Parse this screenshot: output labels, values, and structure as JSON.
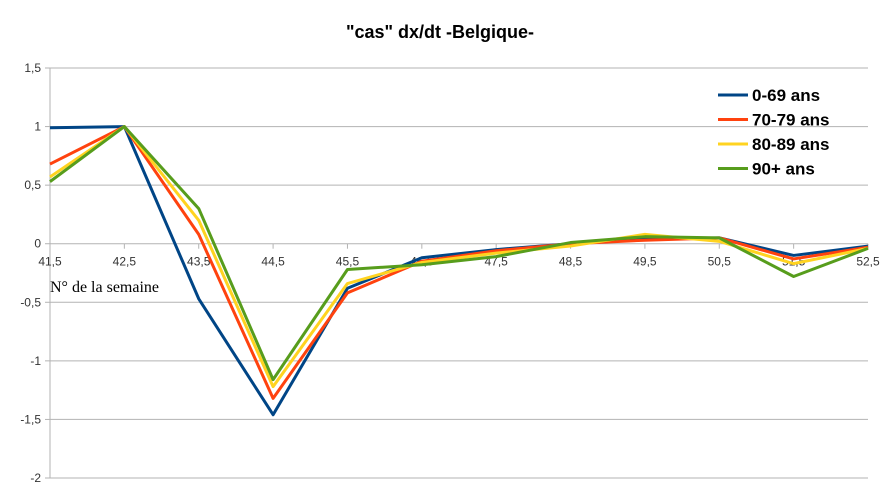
{
  "chart_data": {
    "type": "line",
    "title": "\"cas\" dx/dt  -Belgique-",
    "xlabel": "N° de la semaine",
    "ylabel": "",
    "x": [
      41.5,
      42.5,
      43.5,
      44.5,
      45.5,
      46.5,
      47.5,
      48.5,
      49.5,
      50.5,
      51.5,
      52.5
    ],
    "x_tick_labels": [
      "41,5",
      "42,5",
      "43,5",
      "44,5",
      "45,5",
      "46,5",
      "47,5",
      "48,5",
      "49,5",
      "50,5",
      "51,5",
      "52,5"
    ],
    "xlim": [
      41.5,
      52.5
    ],
    "ylim": [
      -2,
      1.5
    ],
    "y_ticks": [
      1.5,
      1,
      0.5,
      0,
      -0.5,
      -1,
      -1.5,
      -2
    ],
    "y_tick_labels": [
      "1,5",
      "1",
      "0,5",
      "0",
      "-0,5",
      "-1",
      "-1,5",
      "-2"
    ],
    "grid": true,
    "legend_position": "top-right",
    "series": [
      {
        "name": "0-69 ans",
        "color": "#004586",
        "values": [
          0.99,
          1.0,
          -0.47,
          -1.46,
          -0.38,
          -0.12,
          -0.05,
          0.0,
          0.04,
          0.05,
          -0.1,
          -0.02
        ]
      },
      {
        "name": "70-79 ans",
        "color": "#ff420e",
        "values": [
          0.68,
          1.0,
          0.08,
          -1.32,
          -0.42,
          -0.15,
          -0.06,
          0.0,
          0.03,
          0.05,
          -0.13,
          -0.03
        ]
      },
      {
        "name": "80-89 ans",
        "color": "#ffd320",
        "values": [
          0.57,
          1.0,
          0.2,
          -1.22,
          -0.34,
          -0.16,
          -0.08,
          -0.02,
          0.08,
          0.02,
          -0.17,
          -0.04
        ]
      },
      {
        "name": "90+ ans",
        "color": "#579d1c",
        "values": [
          0.53,
          1.0,
          0.3,
          -1.16,
          -0.22,
          -0.18,
          -0.11,
          0.01,
          0.06,
          0.05,
          -0.28,
          -0.04
        ]
      }
    ]
  }
}
